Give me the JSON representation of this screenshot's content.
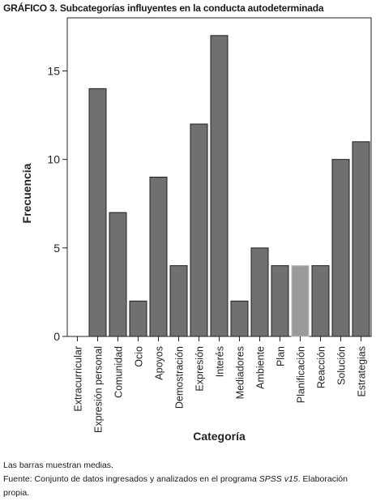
{
  "title": {
    "label": "GRÁFICO 3.",
    "text": "Subcategorías  influyentes en la conducta autodeterminada"
  },
  "chart_data": {
    "type": "bar",
    "categories": [
      "Extracurricular",
      "Expresión personal",
      "Comunidad",
      "Ocio",
      "Apoyos",
      "Demostración",
      "Expresión",
      "Interés",
      "Mediadores",
      "Ambiente",
      "Plan",
      "Planificación",
      "Reacción",
      "Solución",
      "Estrategias"
    ],
    "values": [
      0,
      14,
      7,
      2,
      9,
      4,
      12,
      17,
      2,
      5,
      4,
      4,
      4,
      10,
      11
    ],
    "xlabel": "Categoría",
    "ylabel": "Frecuencia",
    "ylim": [
      0,
      18
    ],
    "yticks": [
      0,
      5,
      10,
      15
    ],
    "grid": false,
    "bar_color": "#707070",
    "highlight_color": "#9a9a9a",
    "highlight_index": 11
  },
  "notes": {
    "line1": "Las barras muestran medias.",
    "line2_prefix": "Fuente: Conjunto de datos ingresados y analizados en el programa ",
    "line2_software": "SPSS v15",
    "line2_suffix": ". Elaboración propia."
  }
}
